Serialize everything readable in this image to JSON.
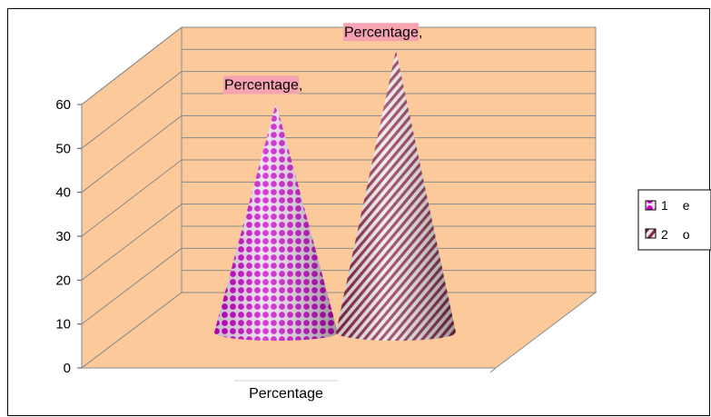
{
  "chart_data": {
    "type": "bar",
    "shape": "cone-3d",
    "categories": [
      "Percentage"
    ],
    "series": [
      {
        "name": "1 e",
        "values": [
          50
        ],
        "data_label": "Percentage,",
        "color": "#cc00cc",
        "pattern": "dots"
      },
      {
        "name": "2 o",
        "values": [
          62
        ],
        "data_label": "Percentage,",
        "color": "#8a2848",
        "pattern": "diagonal-stripes"
      }
    ],
    "y_ticks": [
      "0",
      "10",
      "20",
      "30",
      "40",
      "50",
      "60"
    ],
    "ylim": [
      0,
      60
    ],
    "grid": true,
    "legend_position": "right",
    "colors": {
      "wall": "#fcc99a",
      "floor": "#fcc99a",
      "label_background": "#f5a3b0",
      "frame": "#000000"
    }
  }
}
